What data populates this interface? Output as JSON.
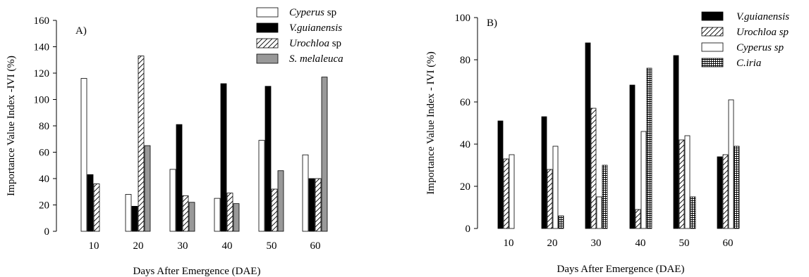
{
  "colors": {
    "black": "#000000",
    "gray": "#999999",
    "white": "#ffffff"
  },
  "chart_data": [
    {
      "type": "bar",
      "panel_label": "A)",
      "xlabel": "Days After Emergence (DAE)",
      "ylabel": "Importance Value Index -IVI (%)",
      "ylim": [
        0,
        160
      ],
      "yticks": [
        0,
        20,
        40,
        60,
        80,
        100,
        120,
        140,
        160
      ],
      "categories": [
        "10",
        "20",
        "30",
        "40",
        "50",
        "60"
      ],
      "legend_position": "top-right",
      "grid": false,
      "series": [
        {
          "name_italic": "Cyperus",
          "name_rest": " sp",
          "pattern": "white",
          "values": [
            116,
            28,
            47,
            25,
            69,
            58
          ]
        },
        {
          "name_italic": "V.guianensis",
          "name_rest": "",
          "pattern": "black",
          "values": [
            43,
            19,
            81,
            112,
            110,
            40
          ]
        },
        {
          "name_italic": "Urochloa",
          "name_rest": " sp",
          "pattern": "hatch",
          "values": [
            36,
            133,
            27,
            29,
            32,
            40
          ]
        },
        {
          "name_italic": "S. melaleuca",
          "name_rest": "",
          "pattern": "gray",
          "values": [
            0,
            65,
            22,
            21,
            46,
            117
          ]
        }
      ]
    },
    {
      "type": "bar",
      "panel_label": "B)",
      "xlabel": "Days After Emergence (DAE)",
      "ylabel": "Importance Value Index - IVI (%)",
      "ylim": [
        0,
        100
      ],
      "yticks": [
        0,
        20,
        40,
        60,
        80,
        100
      ],
      "categories": [
        "10",
        "20",
        "30",
        "40",
        "50",
        "60"
      ],
      "legend_position": "top-right",
      "grid": false,
      "series": [
        {
          "name_italic": "V.guianensis",
          "name_rest": "",
          "pattern": "black",
          "values": [
            51,
            53,
            88,
            68,
            82,
            34
          ]
        },
        {
          "name_italic": "Urochloa sp",
          "name_rest": "",
          "pattern": "hatch",
          "values": [
            33,
            28,
            57,
            9,
            42,
            35
          ]
        },
        {
          "name_italic": "Cyperus sp",
          "name_rest": "",
          "pattern": "white",
          "values": [
            35,
            39,
            15,
            46,
            44,
            61
          ]
        },
        {
          "name_italic": "C.iria",
          "name_rest": "",
          "pattern": "grid",
          "values": [
            0,
            6,
            30,
            76,
            15,
            39
          ]
        }
      ]
    }
  ]
}
